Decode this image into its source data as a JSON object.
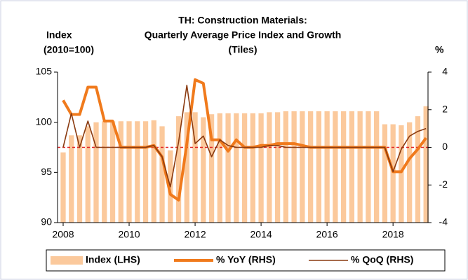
{
  "chart_data": {
    "type": "bar_line",
    "title": [
      "TH: Construction Materials:",
      "Quarterly Average Price Index and Growth",
      "(Tiles)"
    ],
    "y_label": [
      "Index",
      "(2010=100)"
    ],
    "y2_label": "%",
    "x": [
      2008,
      2008.25,
      2008.5,
      2008.75,
      2009,
      2009.25,
      2009.5,
      2009.75,
      2010,
      2010.25,
      2010.5,
      2010.75,
      2011,
      2011.25,
      2011.5,
      2011.75,
      2012,
      2012.25,
      2012.5,
      2012.75,
      2013,
      2013.25,
      2013.5,
      2013.75,
      2014,
      2014.25,
      2014.5,
      2014.75,
      2015,
      2015.25,
      2015.5,
      2015.75,
      2016,
      2016.25,
      2016.5,
      2016.75,
      2017,
      2017.25,
      2017.5,
      2017.75,
      2018,
      2018.25,
      2018.5,
      2018.75,
      2019
    ],
    "xlim": [
      2007.83,
      2019.06
    ],
    "xticks": [
      2008,
      2010,
      2012,
      2014,
      2016,
      2018
    ],
    "ylim": [
      90,
      105
    ],
    "yticks": [
      90,
      95,
      100,
      105
    ],
    "y2lim": [
      -4,
      4
    ],
    "y2ticks": [
      -4,
      -2,
      0,
      2,
      4
    ],
    "zero_line": {
      "axis": "y2",
      "color": "#e02020"
    },
    "series": [
      {
        "name": "Index (LHS)",
        "kind": "bar",
        "color": "#fbc99c",
        "values": [
          97.0,
          98.7,
          98.7,
          99.6,
          100.0,
          100.1,
          100.1,
          100.1,
          100.1,
          100.1,
          100.1,
          100.2,
          99.6,
          97.2,
          100.6,
          101.0,
          101.0,
          100.5,
          100.8,
          100.9,
          100.9,
          100.9,
          100.9,
          100.9,
          100.9,
          101.0,
          101.0,
          101.1,
          101.1,
          101.1,
          101.1,
          101.1,
          101.1,
          101.1,
          101.1,
          101.1,
          101.1,
          101.1,
          101.1,
          99.8,
          99.8,
          99.7,
          100.0,
          100.6,
          101.6
        ]
      },
      {
        "name": "% YoY (RHS)",
        "kind": "line",
        "axis": "y2",
        "color": "#f07a1c",
        "width": 4,
        "values": [
          2.5,
          1.75,
          1.75,
          3.2,
          3.2,
          1.4,
          1.4,
          0,
          0,
          0,
          0,
          0.1,
          -0.5,
          -2.5,
          -2.8,
          0.2,
          3.6,
          3.4,
          0.4,
          0.4,
          -0.2,
          0.4,
          0,
          0,
          0.1,
          0.1,
          0.2,
          0.2,
          0.2,
          0.1,
          0,
          0,
          0,
          0,
          0,
          0,
          0,
          0,
          0,
          0,
          -1.3,
          -1.3,
          -0.6,
          -0.1,
          0.5
        ]
      },
      {
        "name": "% QoQ (RHS)",
        "kind": "line",
        "axis": "y2",
        "color": "#8a3a10",
        "width": 1.6,
        "values": [
          0,
          1.8,
          0,
          1.4,
          0,
          0,
          0,
          0,
          0,
          0,
          0,
          0.1,
          -0.5,
          -2.1,
          0.3,
          3.3,
          0.2,
          0.6,
          -0.5,
          0.4,
          0.1,
          0,
          0,
          0,
          0,
          0.1,
          0.1,
          0,
          0,
          0,
          0,
          0,
          0,
          0,
          0,
          0,
          0,
          0,
          0,
          0,
          -1.3,
          -0.1,
          0.6,
          0.85,
          1.0
        ]
      }
    ]
  }
}
